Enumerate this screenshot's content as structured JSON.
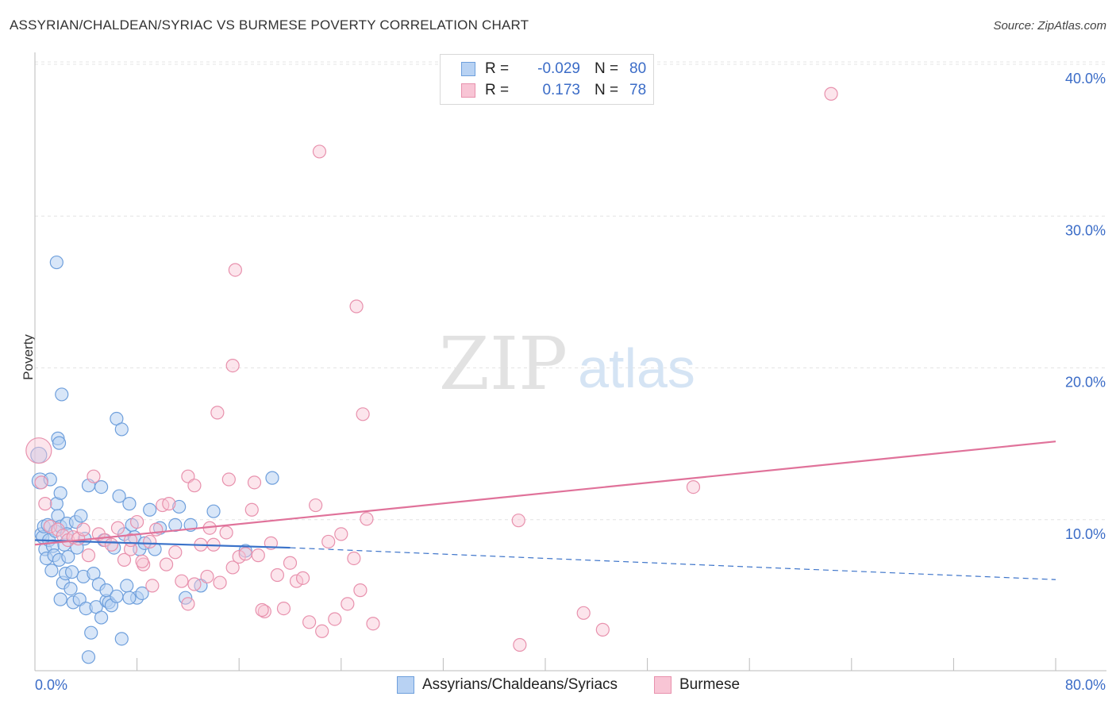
{
  "header": {
    "title": "ASSYRIAN/CHALDEAN/SYRIAC VS BURMESE POVERTY CORRELATION CHART",
    "source": "Source: ZipAtlas.com"
  },
  "legend": {
    "series1": {
      "r_label": "R =",
      "r_value": "-0.029",
      "n_label": "N =",
      "n_value": "80"
    },
    "series2": {
      "r_label": "R =",
      "r_value": "0.173",
      "n_label": "N =",
      "n_value": "78"
    }
  },
  "watermark": {
    "zip": "ZIP",
    "atlas": "atlas"
  },
  "colors": {
    "blue_fill": "#b8d2f3",
    "blue_stroke": "#6e9fdc",
    "blue_line": "#3a72c9",
    "pink_fill": "#f8c5d5",
    "pink_stroke": "#e891ad",
    "pink_line": "#e0729a",
    "tick_label": "#3b6cc7"
  },
  "chart_data": {
    "type": "scatter",
    "title": "ASSYRIAN/CHALDEAN/SYRIAC VS BURMESE POVERTY CORRELATION CHART",
    "xlabel": "",
    "ylabel": "Poverty",
    "xlim": [
      0,
      80
    ],
    "ylim": [
      0,
      40
    ],
    "x_tick_labels": [
      "0.0%",
      "80.0%"
    ],
    "y_ticks": [
      10,
      20,
      30,
      40
    ],
    "y_tick_labels": [
      "10.0%",
      "20.0%",
      "30.0%",
      "40.0%"
    ],
    "grid": true,
    "series": [
      {
        "name": "Assyrians/Chaldeans/Syriacs",
        "color": "blue",
        "trend": {
          "x0": 0,
          "y0": 8.6,
          "x1": 20,
          "y1": 8.1,
          "x_end": 80,
          "y_end": 6.0,
          "dashed_after": 20
        },
        "points": [
          [
            0.3,
            14.2
          ],
          [
            0.4,
            12.5
          ],
          [
            0.5,
            9.0
          ],
          [
            0.6,
            8.8
          ],
          [
            0.7,
            9.5
          ],
          [
            0.8,
            8.0
          ],
          [
            0.9,
            7.4
          ],
          [
            1.0,
            9.6
          ],
          [
            1.1,
            8.6
          ],
          [
            1.2,
            12.6
          ],
          [
            1.3,
            6.6
          ],
          [
            1.4,
            8.2
          ],
          [
            1.5,
            7.6
          ],
          [
            1.6,
            9.2
          ],
          [
            1.7,
            11.0
          ],
          [
            1.8,
            10.2
          ],
          [
            1.9,
            7.3
          ],
          [
            2.0,
            9.5
          ],
          [
            2.0,
            4.7
          ],
          [
            2.1,
            18.2
          ],
          [
            2.2,
            5.8
          ],
          [
            2.3,
            8.3
          ],
          [
            2.4,
            6.4
          ],
          [
            2.5,
            9.7
          ],
          [
            1.7,
            26.9
          ],
          [
            1.8,
            15.3
          ],
          [
            1.9,
            15.0
          ],
          [
            2.0,
            11.7
          ],
          [
            2.5,
            9.0
          ],
          [
            2.6,
            7.5
          ],
          [
            2.8,
            5.4
          ],
          [
            3.0,
            4.5
          ],
          [
            3.2,
            9.8
          ],
          [
            3.3,
            8.1
          ],
          [
            3.5,
            4.7
          ],
          [
            3.6,
            10.2
          ],
          [
            3.8,
            6.2
          ],
          [
            4.0,
            4.1
          ],
          [
            4.2,
            12.2
          ],
          [
            4.4,
            2.5
          ],
          [
            4.6,
            6.4
          ],
          [
            4.8,
            4.2
          ],
          [
            5.0,
            5.7
          ],
          [
            5.2,
            12.1
          ],
          [
            5.4,
            8.6
          ],
          [
            5.6,
            4.6
          ],
          [
            5.8,
            4.5
          ],
          [
            6.0,
            4.3
          ],
          [
            6.2,
            8.1
          ],
          [
            6.4,
            16.6
          ],
          [
            6.6,
            11.5
          ],
          [
            6.8,
            15.9
          ],
          [
            7.0,
            9.0
          ],
          [
            7.2,
            5.6
          ],
          [
            7.4,
            11.0
          ],
          [
            7.6,
            9.6
          ],
          [
            7.8,
            8.8
          ],
          [
            8.0,
            4.8
          ],
          [
            8.2,
            8.0
          ],
          [
            8.4,
            5.1
          ],
          [
            8.6,
            8.4
          ],
          [
            9.0,
            10.6
          ],
          [
            9.4,
            8.0
          ],
          [
            9.8,
            9.4
          ],
          [
            6.8,
            2.1
          ],
          [
            5.2,
            3.5
          ],
          [
            4.2,
            0.9
          ],
          [
            5.6,
            5.3
          ],
          [
            6.4,
            4.9
          ],
          [
            7.4,
            4.8
          ],
          [
            3.9,
            8.7
          ],
          [
            2.9,
            6.5
          ],
          [
            11.0,
            9.6
          ],
          [
            11.3,
            10.8
          ],
          [
            11.8,
            4.8
          ],
          [
            12.2,
            9.6
          ],
          [
            13.0,
            5.6
          ],
          [
            14.0,
            10.5
          ],
          [
            16.5,
            7.9
          ],
          [
            18.6,
            12.7
          ]
        ]
      },
      {
        "name": "Burmese",
        "color": "pink",
        "trend": {
          "x0": 0,
          "y0": 8.3,
          "x1": 80,
          "y1": 15.1
        },
        "points": [
          [
            0.3,
            14.5
          ],
          [
            0.5,
            12.4
          ],
          [
            0.8,
            11.0
          ],
          [
            1.2,
            9.5
          ],
          [
            1.8,
            9.3
          ],
          [
            2.2,
            8.9
          ],
          [
            2.6,
            8.6
          ],
          [
            3.0,
            8.8
          ],
          [
            3.4,
            8.7
          ],
          [
            3.8,
            9.3
          ],
          [
            4.2,
            7.6
          ],
          [
            4.6,
            12.8
          ],
          [
            5.0,
            9.0
          ],
          [
            5.5,
            8.6
          ],
          [
            6.0,
            8.3
          ],
          [
            6.5,
            9.4
          ],
          [
            7.0,
            7.3
          ],
          [
            7.5,
            8.0
          ],
          [
            8.0,
            9.8
          ],
          [
            8.5,
            7.0
          ],
          [
            9.0,
            8.5
          ],
          [
            9.5,
            9.3
          ],
          [
            10.0,
            10.9
          ],
          [
            10.5,
            11.0
          ],
          [
            11.0,
            7.8
          ],
          [
            11.5,
            5.9
          ],
          [
            12.0,
            12.8
          ],
          [
            12.5,
            5.7
          ],
          [
            13.0,
            8.3
          ],
          [
            13.5,
            6.2
          ],
          [
            14.0,
            8.3
          ],
          [
            14.5,
            5.8
          ],
          [
            15.0,
            9.1
          ],
          [
            15.5,
            6.8
          ],
          [
            16.0,
            7.5
          ],
          [
            16.5,
            7.7
          ],
          [
            17.0,
            10.6
          ],
          [
            17.5,
            7.6
          ],
          [
            18.0,
            3.9
          ],
          [
            18.5,
            8.4
          ],
          [
            19.0,
            6.3
          ],
          [
            19.5,
            4.1
          ],
          [
            20.0,
            7.1
          ],
          [
            20.5,
            5.9
          ],
          [
            21.0,
            6.1
          ],
          [
            21.5,
            3.2
          ],
          [
            22.0,
            10.9
          ],
          [
            22.5,
            2.6
          ],
          [
            23.0,
            8.5
          ],
          [
            23.5,
            3.4
          ],
          [
            24.0,
            9.0
          ],
          [
            24.5,
            4.4
          ],
          [
            25.0,
            7.4
          ],
          [
            25.5,
            5.3
          ],
          [
            26.0,
            10.0
          ],
          [
            26.5,
            3.1
          ],
          [
            14.3,
            17.0
          ],
          [
            15.5,
            20.1
          ],
          [
            15.2,
            12.6
          ],
          [
            12.5,
            12.2
          ],
          [
            17.2,
            12.4
          ],
          [
            17.8,
            4.0
          ],
          [
            22.3,
            34.2
          ],
          [
            25.2,
            24.0
          ],
          [
            15.7,
            26.4
          ],
          [
            25.7,
            16.9
          ],
          [
            37.9,
            9.9
          ],
          [
            51.6,
            12.1
          ],
          [
            62.4,
            38.0
          ],
          [
            38.0,
            1.7
          ],
          [
            43.0,
            3.8
          ],
          [
            44.5,
            2.7
          ],
          [
            8.4,
            7.2
          ],
          [
            9.2,
            5.6
          ],
          [
            10.3,
            7.0
          ],
          [
            12.0,
            4.4
          ],
          [
            13.7,
            9.4
          ],
          [
            7.5,
            8.6
          ]
        ]
      }
    ]
  }
}
